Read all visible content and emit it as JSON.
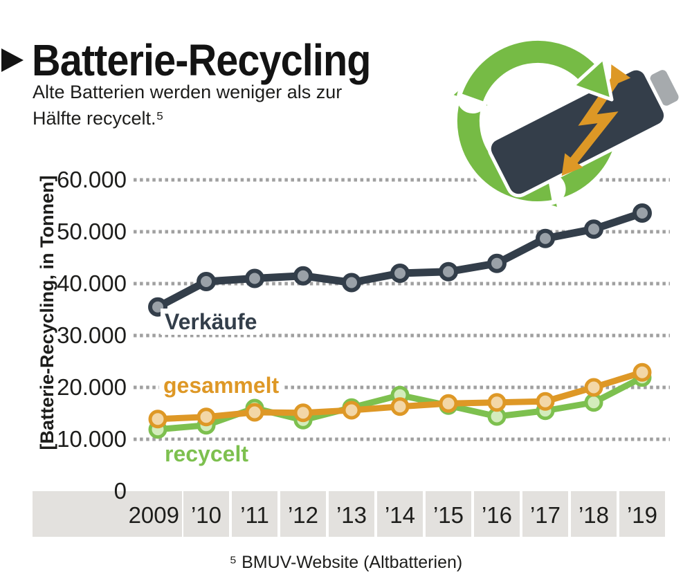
{
  "header": {
    "title": "Batterie-Recycling",
    "subtitle_line1": "Alte Batterien werden weniger als zur",
    "subtitle_line2": "Hälfte recycelt.⁵"
  },
  "footnote": "⁵ BMUV-Website (Altbatterien)",
  "icon": {
    "name": "battery-recycling",
    "arrow_color": "#76bb45",
    "battery_color": "#343e4a",
    "bolt_color": "#dd9826",
    "cap_color": "#a6aaad"
  },
  "chart_data": {
    "type": "line",
    "title": "Batterie-Recycling",
    "xlabel": "",
    "ylabel": "[Batterie-Recycling, in Tonnen]",
    "unit": "Tonnen",
    "categories": [
      "2009",
      "’10",
      "’11",
      "’12",
      "’13",
      "’14",
      "’15",
      "’16",
      "’17",
      "’18",
      "’19"
    ],
    "y_ticks": [
      0,
      10000,
      20000,
      30000,
      40000,
      50000,
      60000
    ],
    "y_tick_labels": [
      "0",
      "10.000",
      "20.000",
      "30.000",
      "40.000",
      "50.000",
      "60.000"
    ],
    "ylim": [
      0,
      64000
    ],
    "grid": "horizontal dotted",
    "legend_position": "inline labels next to lines",
    "grid_color": "#a0a0a0",
    "axis_band_color": "#e3e1de",
    "tick_text_color": "#1d1d1b",
    "series": [
      {
        "name": "Verkäufe",
        "color": "#333e4a",
        "marker_fill": "#9aa1a8",
        "values": [
          35500,
          40400,
          41000,
          41500,
          40200,
          42000,
          42300,
          43900,
          48700,
          50500,
          53600
        ]
      },
      {
        "name": "gesammelt",
        "color": "#de9826",
        "marker_fill": "#f3d7a7",
        "values": [
          13900,
          14300,
          15200,
          15100,
          15600,
          16300,
          16900,
          17100,
          17300,
          20000,
          22900
        ]
      },
      {
        "name": "recycelt",
        "color": "#7dc04f",
        "marker_fill": "#d3ecbc",
        "values": [
          11900,
          12700,
          16000,
          13700,
          16100,
          18500,
          16500,
          14400,
          15500,
          17100,
          21900
        ]
      }
    ]
  }
}
